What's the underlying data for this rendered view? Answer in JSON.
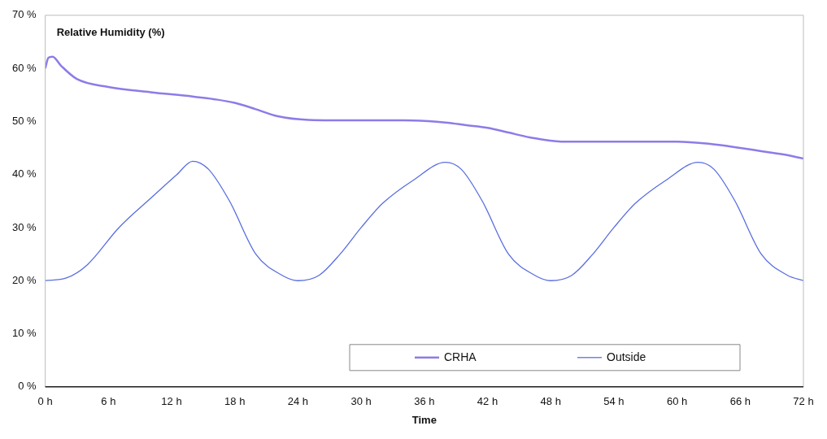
{
  "chart_data": {
    "type": "line",
    "title": "Relative Humidity (%)",
    "xlabel": "Time",
    "xlim": [
      0,
      72
    ],
    "ylim": [
      0,
      70
    ],
    "xticks": [
      {
        "value": 0,
        "label": "0 h"
      },
      {
        "value": 6,
        "label": "6 h"
      },
      {
        "value": 12,
        "label": "12 h"
      },
      {
        "value": 18,
        "label": "18 h"
      },
      {
        "value": 24,
        "label": "24 h"
      },
      {
        "value": 30,
        "label": "30 h"
      },
      {
        "value": 36,
        "label": "36 h"
      },
      {
        "value": 42,
        "label": "42 h"
      },
      {
        "value": 48,
        "label": "48 h"
      },
      {
        "value": 54,
        "label": "54 h"
      },
      {
        "value": 60,
        "label": "60 h"
      },
      {
        "value": 66,
        "label": "66 h"
      },
      {
        "value": 72,
        "label": "72 h"
      }
    ],
    "yticks": [
      {
        "value": 0,
        "label": "0 %"
      },
      {
        "value": 10,
        "label": "10 %"
      },
      {
        "value": 20,
        "label": "20 %"
      },
      {
        "value": 30,
        "label": "30 %"
      },
      {
        "value": 40,
        "label": "40 %"
      },
      {
        "value": 50,
        "label": "50 %"
      },
      {
        "value": 60,
        "label": "60 %"
      },
      {
        "value": 70,
        "label": "70 %"
      }
    ],
    "grid": false,
    "legend": "bottom right",
    "marker": "none",
    "line_style": "solid",
    "series": [
      {
        "name": "CRHA",
        "color": "#8c7ce8",
        "x": [
          0,
          0.3,
          0.7,
          1.5,
          3,
          6,
          10,
          14,
          16,
          18,
          20,
          22,
          25,
          30,
          34,
          38,
          40,
          42,
          44,
          46,
          49,
          54,
          60,
          63,
          66,
          68,
          70,
          72
        ],
        "values": [
          60,
          62,
          62.2,
          60.5,
          58,
          56.5,
          55.5,
          54.7,
          54.2,
          53.5,
          52.3,
          51,
          50.3,
          50.2,
          50.2,
          49.8,
          49.3,
          48.8,
          47.9,
          47,
          46.2,
          46.2,
          46.2,
          45.8,
          45,
          44.4,
          43.8,
          43
        ]
      },
      {
        "name": "Outside",
        "color": "#5a6ee0",
        "x": [
          0,
          2,
          4,
          7,
          10,
          12.5,
          14,
          15.5,
          17.5,
          20,
          22.5,
          24,
          26,
          28,
          30,
          32,
          35,
          38,
          39.5,
          41.5,
          44,
          46.5,
          48,
          50,
          52,
          54,
          56,
          59,
          62,
          63.5,
          65.5,
          68,
          70.5,
          72
        ],
        "values": [
          20,
          20.5,
          23,
          30,
          35.5,
          40,
          42.5,
          41,
          35,
          25,
          21,
          20,
          21,
          25,
          30,
          34.5,
          39,
          42.3,
          41,
          35,
          25,
          21,
          20,
          21,
          25,
          30,
          34.5,
          39,
          42.3,
          41,
          35,
          25,
          21,
          20
        ]
      }
    ]
  }
}
